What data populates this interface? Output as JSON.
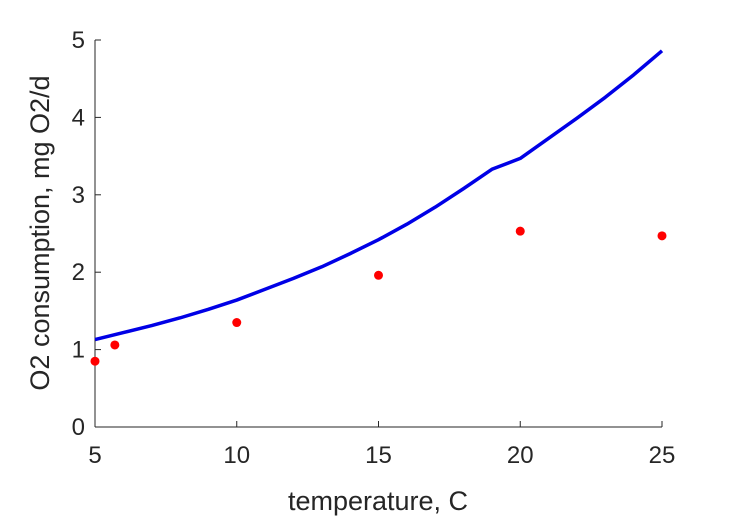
{
  "chart_data": {
    "type": "scatter",
    "title": "",
    "xlabel": "temperature, C",
    "ylabel": "O2 consumption, mg O2/d",
    "xlim": [
      5,
      25
    ],
    "ylim": [
      0,
      5
    ],
    "xticks": [
      "5",
      "10",
      "15",
      "20",
      "25"
    ],
    "yticks": [
      "0",
      "1",
      "2",
      "3",
      "4",
      "5"
    ],
    "grid": false,
    "legend": "none",
    "series": [
      {
        "kind": "line",
        "color": "#0000e6",
        "x": [
          5,
          6,
          7,
          8,
          9,
          10,
          11,
          12,
          13,
          14,
          15,
          16,
          17,
          18,
          19,
          20,
          21,
          22,
          23,
          24,
          25
        ],
        "y": [
          1.13,
          1.22,
          1.31,
          1.41,
          1.52,
          1.64,
          1.78,
          1.92,
          2.07,
          2.24,
          2.42,
          2.62,
          2.84,
          3.08,
          3.33,
          3.47,
          3.73,
          3.99,
          4.26,
          4.55,
          4.86
        ]
      },
      {
        "kind": "scatter",
        "color": "#ff0000",
        "x": [
          5,
          5.7,
          10,
          15,
          20,
          25
        ],
        "y": [
          0.85,
          1.06,
          1.35,
          1.96,
          2.53,
          2.47
        ]
      }
    ]
  }
}
